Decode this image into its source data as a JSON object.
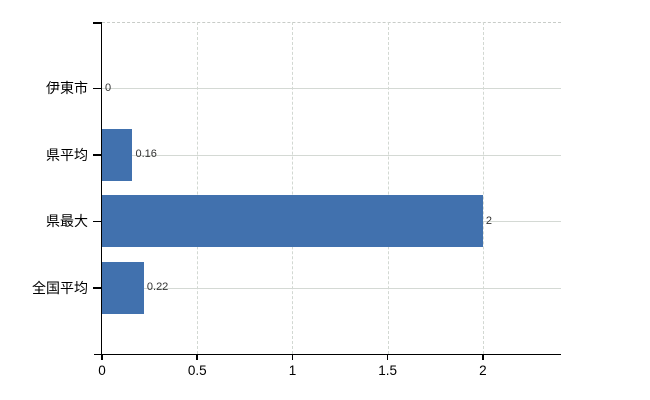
{
  "chart_data": {
    "type": "bar",
    "orientation": "horizontal",
    "title": "",
    "categories": [
      "伊東市",
      "県平均",
      "県最大",
      "全国平均"
    ],
    "values": [
      0,
      0.16,
      2,
      0.22
    ],
    "data_labels": [
      "0",
      "0.16",
      "2",
      "0.22"
    ],
    "x_tick_labels": [
      "0",
      "0.5",
      "1",
      "1.5",
      "2"
    ],
    "x_tick_values": [
      0,
      0.5,
      1,
      1.5,
      2
    ],
    "xlim": [
      0,
      2.41
    ],
    "grid": true,
    "legend": false,
    "colors": {
      "bar": "#4171ae",
      "axis": "#000000",
      "gridline_vertical": "#d2d8d2",
      "gridline_horizontal": "#d4d9d4",
      "plot_top_border": "#c8ccc8",
      "category_label": "#000000",
      "tick_label": "#000000",
      "value_label": "#333333",
      "background": "#ffffff"
    }
  }
}
